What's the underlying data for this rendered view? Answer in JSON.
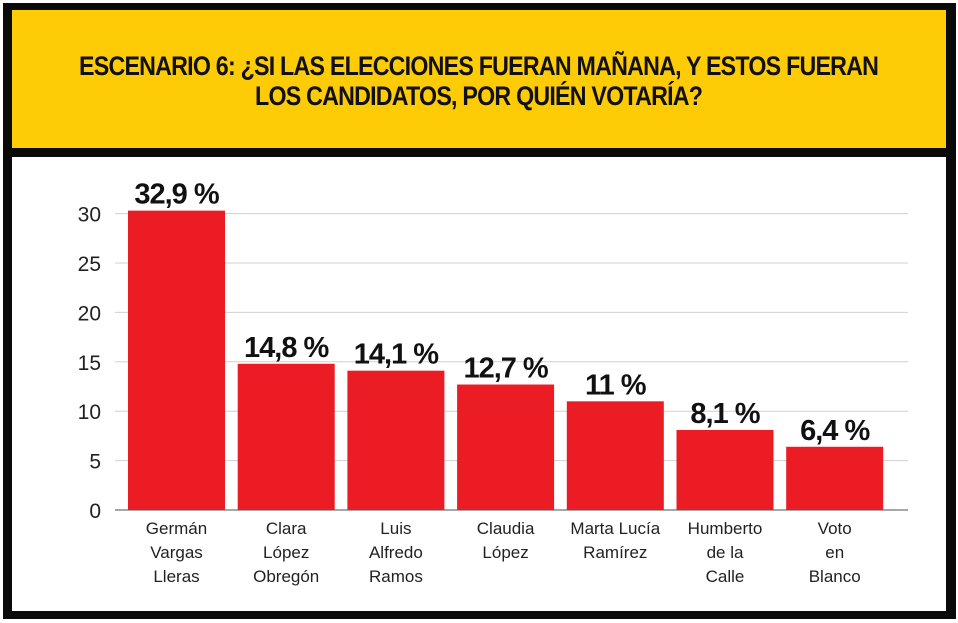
{
  "chart_data": {
    "type": "bar",
    "title": "ESCENARIO 6: ¿SI LAS ELECCIONES FUERAN MAÑANA, Y ESTOS FUERAN LOS CANDIDATOS, POR QUIÉN VOTARÍA?",
    "title_lines": [
      "ESCENARIO 6: ¿SI LAS ELECCIONES FUERAN MAÑANA, Y ESTOS FUERAN",
      "LOS CANDIDATOS, POR QUIÉN VOTARÍA?"
    ],
    "categories": [
      [
        "Germán",
        "Vargas",
        "Lleras"
      ],
      [
        "Clara",
        "López",
        "Obregón"
      ],
      [
        "Luis",
        "Alfredo",
        "Ramos"
      ],
      [
        "Claudia",
        "López"
      ],
      [
        "Marta Lucía",
        "Ramírez"
      ],
      [
        "Humberto",
        "de la",
        "Calle"
      ],
      [
        "Voto",
        "en",
        "Blanco"
      ]
    ],
    "values": [
      32.9,
      14.8,
      14.1,
      12.7,
      11,
      8.1,
      6.4
    ],
    "data_labels": [
      "32,9 %",
      "14,8 %",
      "14,1 %",
      "12,7 %",
      "11 %",
      "8,1 %",
      "6,4 %"
    ],
    "xlabel": "",
    "ylabel": "",
    "ylim": [
      0,
      30
    ],
    "yticks": [
      0,
      5,
      10,
      15,
      20,
      25,
      30
    ],
    "ytick_labels": [
      "0",
      "5",
      "10",
      "15",
      "20",
      "25",
      "30"
    ],
    "grid": true,
    "legend": "none",
    "colors": {
      "bar": "#ec1c24",
      "header": "#fecb07",
      "frame": "#0a0a0a",
      "grid": "#d0d0d0"
    }
  }
}
